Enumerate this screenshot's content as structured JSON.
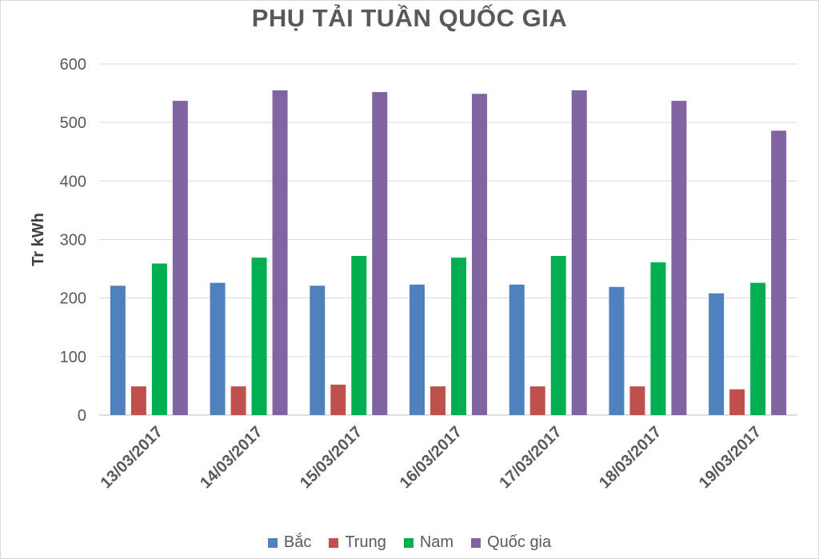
{
  "chart_data": {
    "type": "bar",
    "title": "PHỤ TẢI TUẦN QUỐC GIA",
    "xlabel": "",
    "ylabel": "Tr kWh",
    "ylim": [
      0,
      600
    ],
    "yticks": [
      0,
      100,
      200,
      300,
      400,
      500,
      600
    ],
    "grid": true,
    "legend_position": "bottom",
    "categories": [
      "13/03/2017",
      "14/03/2017",
      "15/03/2017",
      "16/03/2017",
      "17/03/2017",
      "18/03/2017",
      "19/03/2017"
    ],
    "series": [
      {
        "name": "Bắc",
        "color": "#4f81bd",
        "values": [
          221,
          226,
          221,
          223,
          223,
          219,
          208
        ]
      },
      {
        "name": "Trung",
        "color": "#c0504d",
        "values": [
          49,
          49,
          52,
          49,
          49,
          49,
          44
        ]
      },
      {
        "name": "Nam",
        "color": "#00b050",
        "values": [
          259,
          269,
          272,
          269,
          272,
          261,
          226
        ]
      },
      {
        "name": "Quốc gia",
        "color": "#8064a2",
        "values": [
          537,
          555,
          552,
          549,
          555,
          537,
          486
        ]
      }
    ]
  }
}
